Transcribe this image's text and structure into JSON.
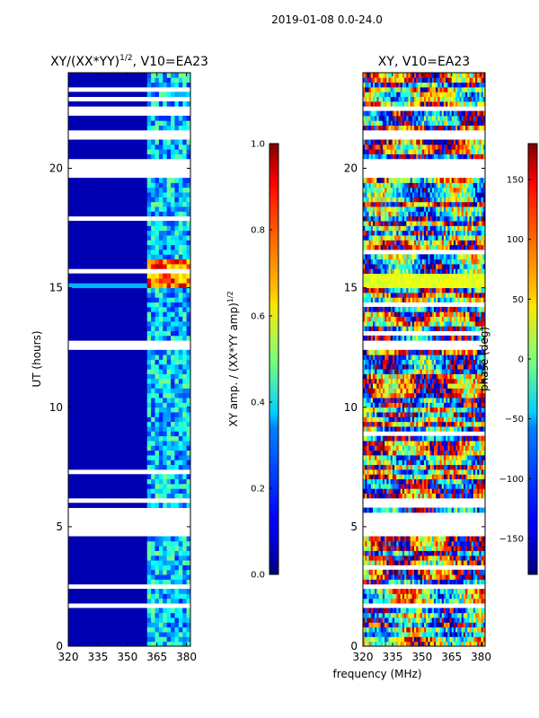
{
  "figure": {
    "suptitle": "2019-01-08 0.0-24.0",
    "shared_xlabel": "frequency (MHz)"
  },
  "chart_data": [
    {
      "type": "heatmap",
      "title": "XY/(XX*YY)",
      "title_superscript": "1/2",
      "title_suffix": ", V10=EA23",
      "xlabel": "",
      "ylabel": "UT (hours)",
      "xlim": [
        320,
        382
      ],
      "ylim": [
        0,
        24
      ],
      "xticks": [
        320,
        335,
        350,
        365,
        380
      ],
      "xticklabels": [
        "320",
        "335",
        "350",
        "365",
        "380"
      ],
      "yticks": [
        0,
        5,
        10,
        15,
        20
      ],
      "yticklabels": [
        "0",
        "5",
        "10",
        "15",
        "20"
      ],
      "colormap": "jet",
      "colorbar": {
        "label": "XY amp. / (XX*YY amp)",
        "label_superscript": "1/2",
        "range": [
          0.0,
          1.0
        ],
        "ticks": [
          0.0,
          0.2,
          0.4,
          0.6,
          0.8,
          1.0
        ],
        "ticklabels": [
          "0.0",
          "0.2",
          "0.4",
          "0.6",
          "0.8",
          "1.0"
        ]
      },
      "description_values": {
        "low_band_mhz": [
          320,
          360
        ],
        "low_band_value": 0.05,
        "high_band_mhz": [
          360,
          382
        ],
        "high_band_value_range": [
          0.15,
          0.5
        ],
        "bright_feature_ut": [
          15.0,
          16.2
        ],
        "bright_feature_value_range": [
          0.6,
          0.95
        ]
      },
      "flagged_ut_gaps": [
        [
          0.35,
          0.45
        ],
        [
          1.6,
          1.75
        ],
        [
          2.5,
          2.65
        ],
        [
          4.6,
          5.1
        ],
        [
          5.3,
          5.6
        ],
        [
          6.1,
          6.3
        ],
        [
          12.5,
          12.7
        ],
        [
          19.7,
          20.4
        ],
        [
          21.2,
          21.5
        ],
        [
          22.4,
          22.6
        ]
      ]
    },
    {
      "type": "heatmap",
      "title": "XY, V10=EA23",
      "xlabel": "",
      "ylabel": "",
      "xlim": [
        320,
        382
      ],
      "ylim": [
        0,
        24
      ],
      "xticks": [
        320,
        335,
        350,
        365,
        380
      ],
      "xticklabels": [
        "320",
        "335",
        "350",
        "365",
        "380"
      ],
      "yticks": [
        0,
        5,
        10,
        15,
        20
      ],
      "yticklabels": [
        "0",
        "5",
        "10",
        "15",
        "20"
      ],
      "colormap": "jet",
      "colorbar": {
        "label": "phase (deg)",
        "range": [
          -180,
          180
        ],
        "ticks": [
          -150,
          -100,
          -50,
          0,
          50,
          100,
          150
        ],
        "ticklabels": [
          "−150",
          "−100",
          "−50",
          "0",
          "50",
          "100",
          "150"
        ]
      },
      "flagged_ut_gaps": [
        [
          0.35,
          0.45
        ],
        [
          1.6,
          1.75
        ],
        [
          2.5,
          2.65
        ],
        [
          4.6,
          5.1
        ],
        [
          5.3,
          5.6
        ],
        [
          6.1,
          6.3
        ],
        [
          12.5,
          12.7
        ],
        [
          19.7,
          20.4
        ],
        [
          21.2,
          21.5
        ],
        [
          22.4,
          22.6
        ]
      ]
    }
  ]
}
